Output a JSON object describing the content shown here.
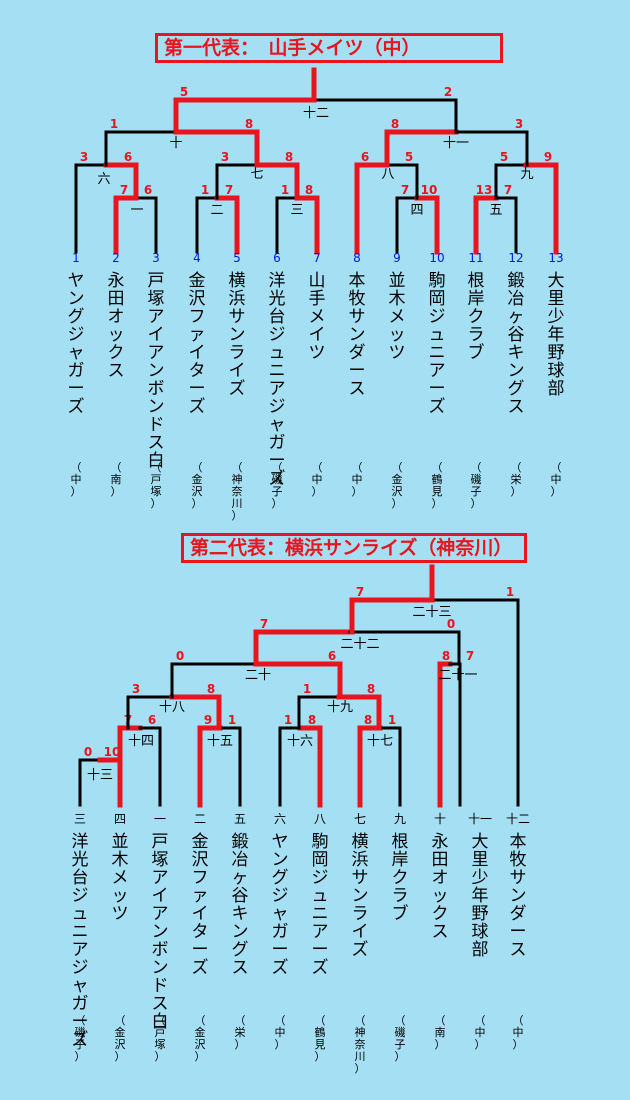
{
  "brackets": [
    {
      "title": "第一代表：　山手メイツ（中）",
      "teams": [
        {
          "num": "1",
          "name": "ヤングジャガーズ",
          "area": "（中）"
        },
        {
          "num": "2",
          "name": "永田オックス",
          "area": "（南）"
        },
        {
          "num": "3",
          "name": "戸塚アイアンボンドス白",
          "area": "（戸塚）"
        },
        {
          "num": "4",
          "name": "金沢ファイターズ",
          "area": "（金沢）"
        },
        {
          "num": "5",
          "name": "横浜サンライズ",
          "area": "（神奈川）"
        },
        {
          "num": "6",
          "name": "洋光台ジュニアジャガーズ",
          "area": "（磯子）"
        },
        {
          "num": "7",
          "name": "山手メイツ",
          "area": "（中）"
        },
        {
          "num": "8",
          "name": "本牧サンダース",
          "area": "（中）"
        },
        {
          "num": "9",
          "name": "並木メッツ",
          "area": "（金沢）"
        },
        {
          "num": "10",
          "name": "駒岡ジュニアーズ",
          "area": "（鶴見）"
        },
        {
          "num": "11",
          "name": "根岸クラブ",
          "area": "（磯子）"
        },
        {
          "num": "12",
          "name": "鍛冶ヶ谷キングス",
          "area": "（栄）"
        },
        {
          "num": "13",
          "name": "大里少年野球部",
          "area": "（中）"
        }
      ],
      "games": [
        {
          "no": "一",
          "left_score": "7",
          "right_score": "6"
        },
        {
          "no": "二",
          "left_score": "1",
          "right_score": "7"
        },
        {
          "no": "三",
          "left_score": "1",
          "right_score": "8"
        },
        {
          "no": "四",
          "left_score": "7",
          "right_score": "10"
        },
        {
          "no": "五",
          "left_score": "13",
          "right_score": "7"
        },
        {
          "no": "六",
          "left_score": "3",
          "right_score": "6"
        },
        {
          "no": "七",
          "left_score": "3",
          "right_score": "8"
        },
        {
          "no": "八",
          "left_score": "6",
          "right_score": "5"
        },
        {
          "no": "九",
          "left_score": "5",
          "right_score": "9"
        },
        {
          "no": "十",
          "left_score": "1",
          "right_score": "8"
        },
        {
          "no": "十一",
          "left_score": "8",
          "right_score": "3"
        },
        {
          "no": "十二",
          "left_score": "5",
          "right_score": "2"
        }
      ]
    },
    {
      "title": "第二代表：横浜サンライズ（神奈川）",
      "teams": [
        {
          "num": "三",
          "name": "洋光台ジュニアジャガーズ",
          "area": "（磯子）"
        },
        {
          "num": "四",
          "name": "並木メッツ",
          "area": "（金沢）"
        },
        {
          "num": "一",
          "name": "戸塚アイアンボンドス白",
          "area": "（戸塚）"
        },
        {
          "num": "二",
          "name": "金沢ファイターズ",
          "area": "（金沢）"
        },
        {
          "num": "五",
          "name": "鍛冶ヶ谷キングス",
          "area": "（栄）"
        },
        {
          "num": "六",
          "name": "ヤングジャガーズ",
          "area": "（中）"
        },
        {
          "num": "八",
          "name": "駒岡ジュニアーズ",
          "area": "（鶴見）"
        },
        {
          "num": "七",
          "name": "横浜サンライズ",
          "area": "（神奈川）"
        },
        {
          "num": "九",
          "name": "根岸クラブ",
          "area": "（磯子）"
        },
        {
          "num": "十",
          "name": "永田オックス",
          "area": "（南）"
        },
        {
          "num": "十一",
          "name": "大里少年野球部",
          "area": "（中）"
        },
        {
          "num": "十二",
          "name": "本牧サンダース",
          "area": "（中）"
        }
      ],
      "games": [
        {
          "no": "十三",
          "left_score": "0",
          "right_score": "10"
        },
        {
          "no": "十四",
          "left_score": "7",
          "right_score": "6"
        },
        {
          "no": "十五",
          "left_score": "9",
          "right_score": "1"
        },
        {
          "no": "十六",
          "left_score": "1",
          "right_score": "8"
        },
        {
          "no": "十七",
          "left_score": "8",
          "right_score": "1"
        },
        {
          "no": "十八",
          "left_score": "3",
          "right_score": "8"
        },
        {
          "no": "十九",
          "left_score": "1",
          "right_score": "8"
        },
        {
          "no": "二十",
          "left_score": "0",
          "right_score": "6"
        },
        {
          "no": "二十一",
          "left_score": "8",
          "right_score": "7"
        },
        {
          "no": "二十二",
          "left_score": "7",
          "right_score": "0"
        },
        {
          "no": "二十三",
          "left_score": "7",
          "right_score": "1"
        }
      ]
    }
  ],
  "colors": {
    "background": "#a5dff3",
    "winner_line": "#e8141e",
    "loser_line": "#000000",
    "score": "#e8141e",
    "team_number": "#0018e8",
    "text": "#000000"
  }
}
